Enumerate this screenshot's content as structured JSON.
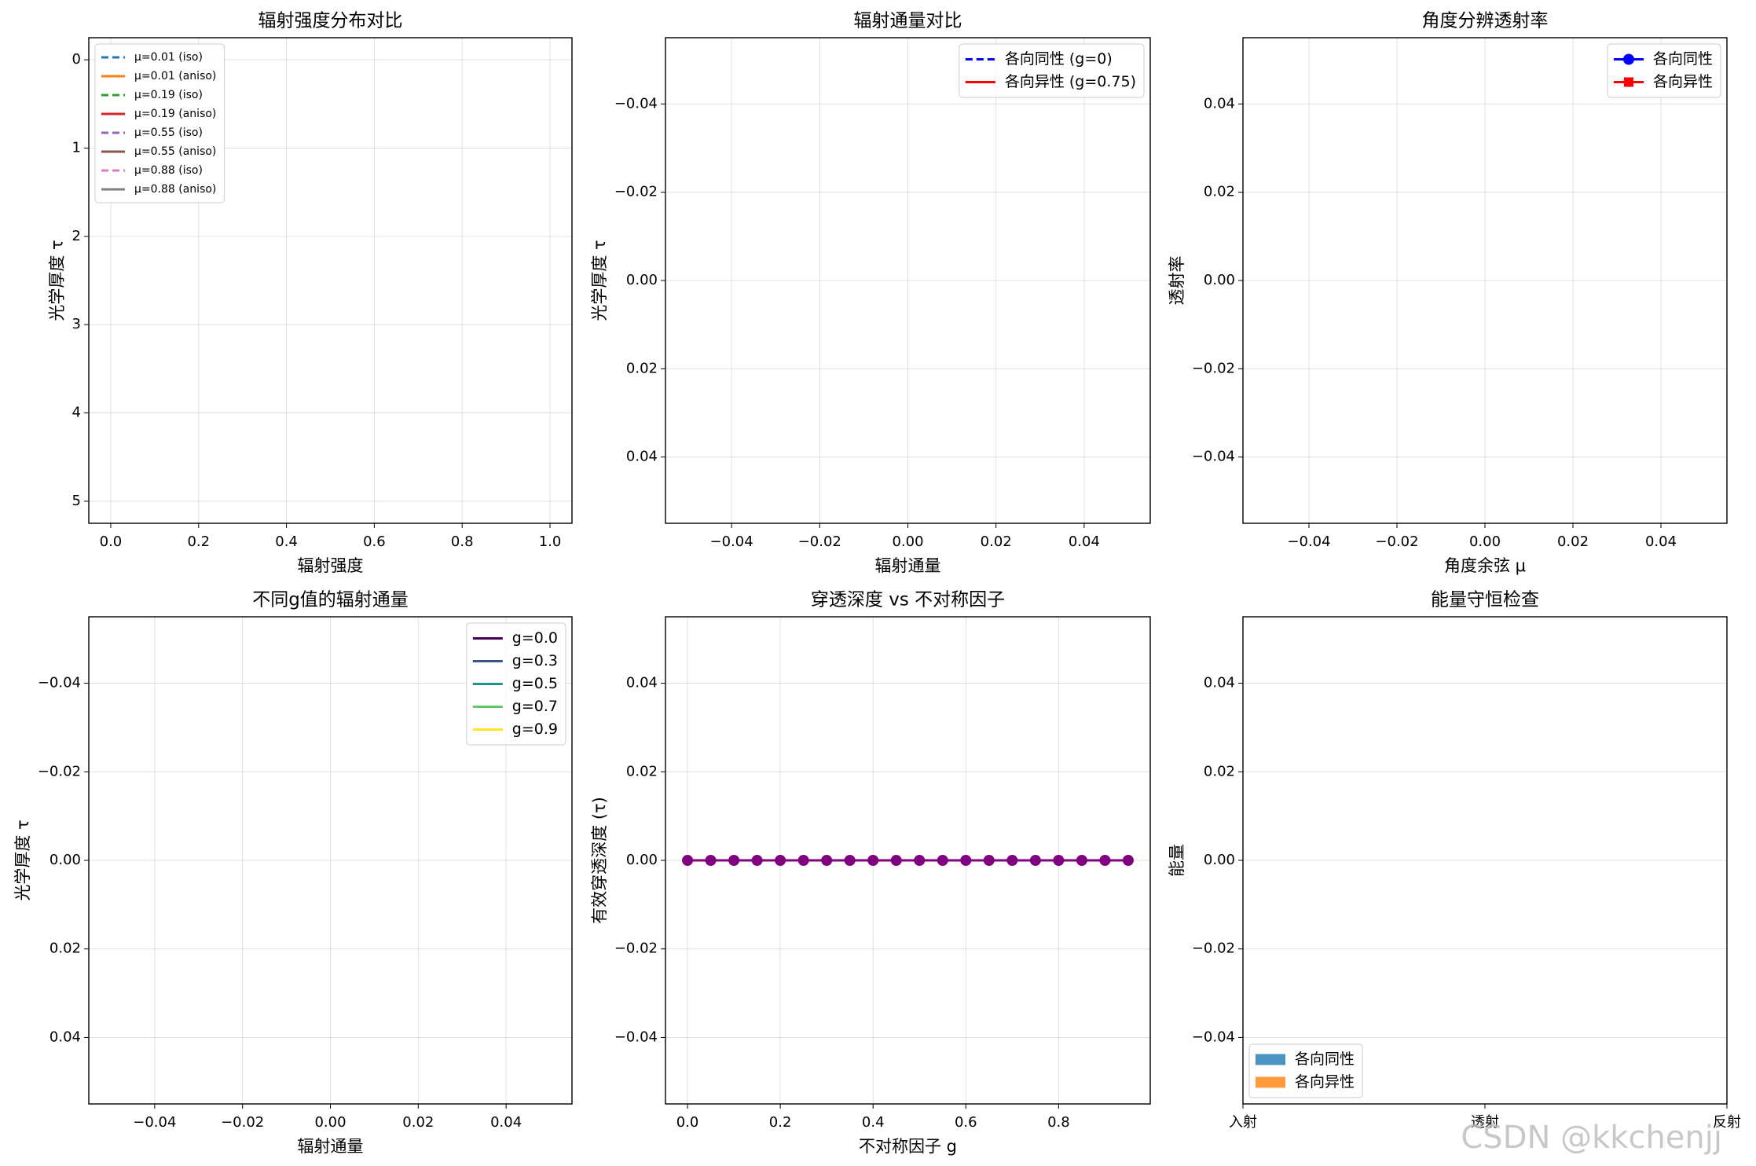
{
  "chart_data": [
    {
      "type": "line",
      "title": "辐射强度分布对比",
      "xlabel": "辐射强度",
      "ylabel": "光学厚度 τ",
      "xlim": [
        -0.05,
        1.05
      ],
      "xticks": [
        {
          "value": 0,
          "label": "0.0"
        },
        0.2,
        0.4,
        0.6,
        0.8,
        {
          "value": 1,
          "label": "1.0"
        }
      ],
      "ylim": [
        5.25,
        -0.25
      ],
      "yticks": [
        0,
        1,
        2,
        3,
        4,
        5
      ],
      "grid": true,
      "legend": "upper left",
      "series": [
        {
          "name": "μ=0.01 (iso)",
          "color": "#1f77b4",
          "linestyle": "dashed",
          "values": []
        },
        {
          "name": "μ=0.01 (aniso)",
          "color": "#ff7f0e",
          "linestyle": "solid",
          "values": []
        },
        {
          "name": "μ=0.19 (iso)",
          "color": "#2ca02c",
          "linestyle": "dashed",
          "values": []
        },
        {
          "name": "μ=0.19 (aniso)",
          "color": "#d62728",
          "linestyle": "solid",
          "values": []
        },
        {
          "name": "μ=0.55 (iso)",
          "color": "#9467bd",
          "linestyle": "dashed",
          "values": []
        },
        {
          "name": "μ=0.55 (aniso)",
          "color": "#8c564b",
          "linestyle": "solid",
          "values": []
        },
        {
          "name": "μ=0.88 (iso)",
          "color": "#e377c2",
          "linestyle": "dashed",
          "values": []
        },
        {
          "name": "μ=0.88 (aniso)",
          "color": "#7f7f7f",
          "linestyle": "solid",
          "values": []
        }
      ]
    },
    {
      "type": "line",
      "title": "辐射通量对比",
      "xlabel": "辐射通量",
      "ylabel": "光学厚度 τ",
      "xlim": [
        -0.055,
        0.055
      ],
      "xticks": [
        {
          "value": -0.04,
          "label": "−0.04"
        },
        {
          "value": -0.02,
          "label": "−0.02"
        },
        {
          "value": 0,
          "label": "0.00"
        },
        0.02,
        0.04
      ],
      "ylim": [
        0.055,
        -0.055
      ],
      "yticks": [
        {
          "value": -0.04,
          "label": "−0.04"
        },
        {
          "value": -0.02,
          "label": "−0.02"
        },
        {
          "value": 0,
          "label": "0.00"
        },
        0.02,
        0.04
      ],
      "grid": true,
      "legend": "upper right",
      "series": [
        {
          "name": "各向同性 (g=0)",
          "color": "#0000ff",
          "linestyle": "dashed",
          "values": []
        },
        {
          "name": "各向异性 (g=0.75)",
          "color": "#ff0000",
          "linestyle": "solid",
          "values": []
        }
      ]
    },
    {
      "type": "line",
      "title": "角度分辨透射率",
      "xlabel": "角度余弦 μ",
      "ylabel": "透射率",
      "xlim": [
        -0.055,
        0.055
      ],
      "xticks": [
        {
          "value": -0.04,
          "label": "−0.04"
        },
        {
          "value": -0.02,
          "label": "−0.02"
        },
        {
          "value": 0,
          "label": "0.00"
        },
        0.02,
        0.04
      ],
      "ylim": [
        -0.055,
        0.055
      ],
      "yticks": [
        {
          "value": -0.04,
          "label": "−0.04"
        },
        {
          "value": -0.02,
          "label": "−0.02"
        },
        {
          "value": 0,
          "label": "0.00"
        },
        0.02,
        0.04
      ],
      "grid": true,
      "legend": "upper right",
      "series": [
        {
          "name": "各向同性",
          "color": "#0000ff",
          "linestyle": "solid",
          "marker": "circle",
          "values": []
        },
        {
          "name": "各向异性",
          "color": "#ff0000",
          "linestyle": "solid",
          "marker": "square",
          "values": []
        }
      ]
    },
    {
      "type": "line",
      "title": "不同g值的辐射通量",
      "xlabel": "辐射通量",
      "ylabel": "光学厚度 τ",
      "xlim": [
        -0.055,
        0.055
      ],
      "xticks": [
        {
          "value": -0.04,
          "label": "−0.04"
        },
        {
          "value": -0.02,
          "label": "−0.02"
        },
        {
          "value": 0,
          "label": "0.00"
        },
        0.02,
        0.04
      ],
      "ylim": [
        0.055,
        -0.055
      ],
      "yticks": [
        {
          "value": -0.04,
          "label": "−0.04"
        },
        {
          "value": -0.02,
          "label": "−0.02"
        },
        {
          "value": 0,
          "label": "0.00"
        },
        0.02,
        0.04
      ],
      "grid": true,
      "legend": "upper right",
      "series": [
        {
          "name": "g=0.0",
          "color": "#440154",
          "linestyle": "solid",
          "values": []
        },
        {
          "name": "g=0.3",
          "color": "#3b528b",
          "linestyle": "solid",
          "values": []
        },
        {
          "name": "g=0.5",
          "color": "#21918c",
          "linestyle": "solid",
          "values": []
        },
        {
          "name": "g=0.7",
          "color": "#5ec962",
          "linestyle": "solid",
          "values": []
        },
        {
          "name": "g=0.9",
          "color": "#fde725",
          "linestyle": "solid",
          "values": []
        }
      ]
    },
    {
      "type": "line",
      "title": "穿透深度 vs 不对称因子",
      "xlabel": "不对称因子 g",
      "ylabel": "有效穿透深度 (τ)",
      "xlim": [
        -0.0475,
        0.9975
      ],
      "xticks": [
        {
          "value": 0,
          "label": "0.0"
        },
        0.2,
        0.4,
        0.6,
        0.8
      ],
      "ylim": [
        -0.055,
        0.055
      ],
      "yticks": [
        {
          "value": -0.04,
          "label": "−0.04"
        },
        {
          "value": -0.02,
          "label": "−0.02"
        },
        {
          "value": 0,
          "label": "0.00"
        },
        0.02,
        0.04
      ],
      "grid": true,
      "x": [
        0,
        0.05,
        0.1,
        0.15,
        0.2,
        0.25,
        0.3,
        0.35,
        0.4,
        0.45,
        0.5,
        0.55,
        0.6,
        0.65,
        0.7,
        0.75,
        0.8,
        0.85,
        0.9,
        0.95
      ],
      "series": [
        {
          "color": "#800080",
          "linestyle": "solid",
          "marker": "circle",
          "values": [
            0,
            0,
            0,
            0,
            0,
            0,
            0,
            0,
            0,
            0,
            0,
            0,
            0,
            0,
            0,
            0,
            0,
            0,
            0,
            0
          ]
        }
      ]
    },
    {
      "type": "bar",
      "title": "能量守恒检查",
      "ylabel": "能量",
      "categories": [
        "入射",
        "透射",
        "反射"
      ],
      "ylim": [
        -0.055,
        0.055
      ],
      "yticks": [
        {
          "value": -0.04,
          "label": "−0.04"
        },
        {
          "value": -0.02,
          "label": "−0.02"
        },
        {
          "value": 0,
          "label": "0.00"
        },
        0.02,
        0.04
      ],
      "grid": true,
      "legend": "lower left",
      "alpha": 0.8,
      "series": [
        {
          "name": "各向同性",
          "color": "#1f77b4",
          "values": [
            0,
            0,
            0
          ]
        },
        {
          "name": "各向异性",
          "color": "#ff7f0e",
          "values": [
            0,
            0,
            0
          ]
        }
      ]
    }
  ],
  "watermark": "CSDN @kkchenjj"
}
